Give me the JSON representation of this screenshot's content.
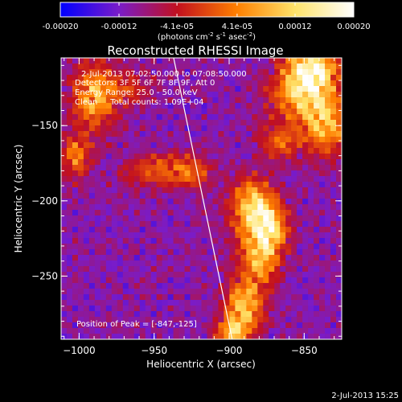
{
  "colorbar": {
    "ticks": [
      -0.0002,
      -0.00012,
      -4.1e-05,
      4.1e-05,
      0.00012,
      0.0002
    ],
    "tick_labels": [
      "-0.00020",
      "-0.00012",
      "-4.1e-05",
      "4.1e-05",
      "0.00012",
      "0.00020"
    ],
    "unit_parts": [
      "(photons cm",
      "-2",
      " s",
      "-1",
      " asec",
      "-2",
      ")"
    ],
    "range": [
      -0.0002,
      0.0002
    ],
    "colors": [
      "#0000ff",
      "#7a1cc8",
      "#c2101e",
      "#ff7f00",
      "#ffe36a",
      "#ffffff"
    ]
  },
  "chart_data": {
    "type": "heatmap",
    "title": "Reconstructed RHESSI Image",
    "xlabel": "Heliocentric X (arcsec)",
    "ylabel": "Heliocentric Y (arcsec)",
    "xlim": [
      -1012,
      -825
    ],
    "ylim": [
      -292,
      -105
    ],
    "x_ticks": [
      -1000,
      -950,
      -900,
      -850
    ],
    "y_ticks": [
      -250,
      -200,
      -150
    ],
    "x_tick_labels": [
      "−1000",
      "−950",
      "−900",
      "−850"
    ],
    "y_tick_labels": [
      "−250",
      "−200",
      "−150"
    ],
    "info_lines": [
      "2-Jul-2013 07:02:50.000 to 07:08:50.000",
      "Detectors: 3F 5F 6F 7F 8F 9F, Att 0",
      "Energy Range: 25.0 - 50.0 keV",
      "Clean     Total counts: 1.09E+04"
    ],
    "peak_label": "Position of Peak = [-847,-125]",
    "peak": [
      -847,
      -125
    ],
    "limb_line": [
      [
        -937,
        -105
      ],
      [
        -898,
        -292
      ]
    ],
    "bright_regions": [
      {
        "x": -845,
        "y": -112,
        "sx": 12,
        "sy": 10,
        "amp": 1.0
      },
      {
        "x": -852,
        "y": -130,
        "sx": 14,
        "sy": 12,
        "amp": 0.8
      },
      {
        "x": -835,
        "y": -150,
        "sx": 10,
        "sy": 14,
        "amp": 0.75
      },
      {
        "x": -865,
        "y": -160,
        "sx": 10,
        "sy": 8,
        "amp": 0.5
      },
      {
        "x": -990,
        "y": -130,
        "sx": 10,
        "sy": 16,
        "amp": 0.75
      },
      {
        "x": -1002,
        "y": -170,
        "sx": 7,
        "sy": 10,
        "amp": 0.6
      },
      {
        "x": -885,
        "y": -205,
        "sx": 10,
        "sy": 14,
        "amp": 0.9
      },
      {
        "x": -872,
        "y": -218,
        "sx": 8,
        "sy": 12,
        "amp": 0.8
      },
      {
        "x": -880,
        "y": -240,
        "sx": 9,
        "sy": 12,
        "amp": 0.7
      },
      {
        "x": -890,
        "y": -270,
        "sx": 9,
        "sy": 12,
        "amp": 0.85
      },
      {
        "x": -898,
        "y": -288,
        "sx": 8,
        "sy": 6,
        "amp": 0.7
      },
      {
        "x": -950,
        "y": -180,
        "sx": 14,
        "sy": 8,
        "amp": 0.45
      },
      {
        "x": -925,
        "y": -180,
        "sx": 10,
        "sy": 8,
        "amp": 0.45
      },
      {
        "x": -965,
        "y": -125,
        "sx": 10,
        "sy": 8,
        "amp": 0.35
      }
    ],
    "grid": false,
    "legend": "none"
  },
  "timestamp": "2-Jul-2013 15:25"
}
